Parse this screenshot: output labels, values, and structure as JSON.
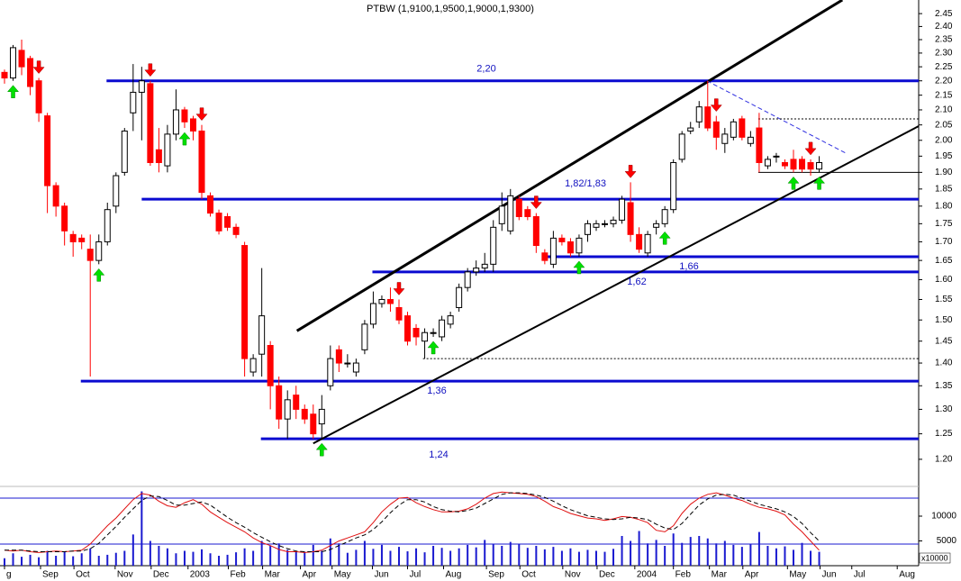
{
  "chart_data": [
    {
      "type": "candlestick",
      "title": "PTBW (1,9100,1,9500,1,9000,1,9300)",
      "open": [
        2.23,
        2.21,
        2.31,
        2.28,
        2.2,
        2.08,
        1.86,
        1.8,
        1.72,
        1.71,
        1.68,
        1.65,
        1.7,
        1.8,
        1.9,
        2.09,
        2.16,
        2.19,
        1.97,
        1.92,
        2.02,
        2.1,
        2.07,
        2.03,
        1.83,
        1.78,
        1.77,
        1.74,
        1.69,
        1.38,
        1.42,
        1.44,
        1.35,
        1.28,
        1.33,
        1.3,
        1.29,
        1.27,
        1.35,
        1.43,
        1.4,
        1.38,
        1.43,
        1.49,
        1.54,
        1.55,
        1.53,
        1.51,
        1.48,
        1.45,
        1.47,
        1.46,
        1.49,
        1.53,
        1.58,
        1.62,
        1.63,
        1.64,
        1.75,
        1.73,
        1.82,
        1.79,
        1.77,
        1.67,
        1.64,
        1.71,
        1.7,
        1.67,
        1.72,
        1.74,
        1.75,
        1.75,
        1.76,
        1.81,
        1.72,
        1.67,
        1.74,
        1.75,
        1.79,
        1.94,
        2.03,
        2.06,
        2.11,
        2.06,
        1.99,
        2.01,
        2.07,
        1.99,
        2.04,
        1.92,
        1.95,
        1.93,
        1.94,
        1.94,
        1.93,
        1.91
      ],
      "high": [
        2.24,
        2.33,
        2.35,
        2.29,
        2.21,
        2.09,
        1.87,
        1.81,
        1.73,
        1.72,
        1.72,
        1.72,
        1.81,
        1.9,
        2.04,
        2.26,
        2.25,
        2.2,
        2.04,
        2.05,
        2.17,
        2.11,
        2.08,
        2.05,
        1.84,
        1.79,
        1.78,
        1.75,
        1.7,
        1.42,
        1.63,
        1.45,
        1.37,
        1.34,
        1.35,
        1.31,
        1.31,
        1.33,
        1.44,
        1.44,
        1.42,
        1.41,
        1.5,
        1.57,
        1.56,
        1.58,
        1.55,
        1.52,
        1.49,
        1.48,
        1.48,
        1.51,
        1.52,
        1.59,
        1.63,
        1.65,
        1.67,
        1.76,
        1.84,
        1.85,
        1.83,
        1.8,
        1.78,
        1.68,
        1.73,
        1.72,
        1.71,
        1.72,
        1.76,
        1.76,
        1.76,
        1.77,
        1.83,
        1.87,
        1.74,
        1.73,
        1.76,
        1.8,
        1.94,
        2.03,
        2.06,
        2.13,
        2.2,
        2.08,
        2.04,
        2.07,
        2.08,
        2.03,
        2.09,
        1.95,
        1.96,
        1.94,
        1.97,
        1.95,
        1.94,
        1.95
      ],
      "low": [
        2.19,
        2.2,
        2.22,
        2.15,
        2.06,
        1.78,
        1.77,
        1.69,
        1.66,
        1.68,
        1.37,
        1.64,
        1.69,
        1.78,
        1.89,
        2.03,
        2.0,
        1.92,
        1.9,
        1.9,
        2.0,
        2.04,
        2.0,
        1.82,
        1.77,
        1.72,
        1.73,
        1.71,
        1.37,
        1.37,
        1.37,
        1.3,
        1.26,
        1.24,
        1.28,
        1.27,
        1.24,
        1.24,
        1.34,
        1.38,
        1.39,
        1.37,
        1.42,
        1.48,
        1.53,
        1.52,
        1.49,
        1.44,
        1.44,
        1.41,
        1.46,
        1.45,
        1.48,
        1.52,
        1.57,
        1.61,
        1.62,
        1.62,
        1.73,
        1.72,
        1.76,
        1.76,
        1.67,
        1.64,
        1.63,
        1.69,
        1.66,
        1.66,
        1.7,
        1.73,
        1.74,
        1.74,
        1.75,
        1.7,
        1.67,
        1.66,
        1.72,
        1.74,
        1.78,
        1.93,
        2.02,
        2.04,
        2.03,
        1.97,
        1.96,
        2.0,
        2.0,
        1.98,
        1.9,
        1.91,
        1.93,
        1.91,
        1.9,
        1.9,
        1.89,
        1.9
      ],
      "close": [
        2.21,
        2.32,
        2.25,
        2.18,
        2.09,
        1.86,
        1.8,
        1.73,
        1.7,
        1.7,
        1.65,
        1.7,
        1.79,
        1.89,
        2.03,
        2.16,
        2.2,
        1.93,
        1.93,
        2.02,
        2.1,
        2.06,
        2.03,
        1.84,
        1.78,
        1.73,
        1.74,
        1.72,
        1.41,
        1.41,
        1.51,
        1.35,
        1.28,
        1.32,
        1.3,
        1.28,
        1.25,
        1.3,
        1.41,
        1.4,
        1.4,
        1.4,
        1.49,
        1.54,
        1.55,
        1.54,
        1.5,
        1.45,
        1.46,
        1.47,
        1.47,
        1.5,
        1.51,
        1.58,
        1.62,
        1.63,
        1.64,
        1.74,
        1.8,
        1.83,
        1.77,
        1.77,
        1.69,
        1.65,
        1.71,
        1.7,
        1.67,
        1.71,
        1.75,
        1.75,
        1.75,
        1.76,
        1.82,
        1.72,
        1.68,
        1.72,
        1.75,
        1.79,
        1.93,
        2.02,
        2.04,
        2.11,
        2.04,
        2.01,
        2.02,
        2.06,
        2.01,
        2.01,
        1.93,
        1.94,
        1.95,
        1.92,
        1.91,
        1.91,
        1.91,
        1.93
      ],
      "up_color": "#ffffff",
      "down_color": "#ff0000",
      "log_scale": true,
      "xlim": [
        -0.525,
        106.6
      ],
      "ylim": [
        1.149,
        2.504
      ],
      "yticks": [
        {
          "value": 2.45,
          "label": "2.45"
        },
        {
          "value": 2.4,
          "label": "2.40"
        },
        {
          "value": 2.35,
          "label": "2.35"
        },
        {
          "value": 2.3,
          "label": "2.30"
        },
        {
          "value": 2.25,
          "label": "2.25"
        },
        {
          "value": 2.2,
          "label": "2.20"
        },
        {
          "value": 2.15,
          "label": "2.15"
        },
        {
          "value": 2.1,
          "label": "2.10"
        },
        {
          "value": 2.05,
          "label": "2.05"
        },
        {
          "value": 2.0,
          "label": "2.00"
        },
        {
          "value": 1.95,
          "label": "1.95"
        },
        {
          "value": 1.9,
          "label": "1.90"
        },
        {
          "value": 1.85,
          "label": "1.85"
        },
        {
          "value": 1.8,
          "label": "1.80"
        },
        {
          "value": 1.75,
          "label": "1.75"
        },
        {
          "value": 1.7,
          "label": "1.70"
        },
        {
          "value": 1.65,
          "label": "1.65"
        },
        {
          "value": 1.6,
          "label": "1.60"
        },
        {
          "value": 1.55,
          "label": "1.55"
        },
        {
          "value": 1.5,
          "label": "1.50"
        },
        {
          "value": 1.45,
          "label": "1.45"
        },
        {
          "value": 1.4,
          "label": "1.40"
        },
        {
          "value": 1.35,
          "label": "1.35"
        },
        {
          "value": 1.3,
          "label": "1.30"
        },
        {
          "value": 1.25,
          "label": "1.25"
        },
        {
          "value": 1.2,
          "label": "1.20"
        }
      ],
      "levels": [
        {
          "value": 2.2,
          "label": "2,20",
          "start": 11.9
        },
        {
          "value": 1.82,
          "label": "1,82/1,83",
          "start": 16.0
        },
        {
          "value": 1.66,
          "label": "1,66",
          "start": 63.0
        },
        {
          "value": 1.62,
          "label": "1,62",
          "start": 42.9
        },
        {
          "value": 1.36,
          "label": "1,36",
          "start": 8.9
        },
        {
          "value": 1.24,
          "label": "1,24",
          "start": 29.9
        }
      ],
      "level_color": "#0a0ad0",
      "trend_lines": [
        {
          "x": [
            34.1,
            97.7
          ],
          "y": [
            1.474,
            2.504
          ],
          "color": "#000000",
          "style": "solid",
          "width": 3
        },
        {
          "x": [
            36.0,
            106.6
          ],
          "y": [
            1.231,
            2.046
          ],
          "color": "#000000",
          "style": "solid",
          "width": 2
        },
        {
          "x": [
            81.9,
            98.2
          ],
          "y": [
            2.2,
            1.958
          ],
          "color": "#3030e0",
          "style": "dashed",
          "width": 1
        },
        {
          "x": [
            87.9,
            106.6
          ],
          "y": [
            2.07,
            2.07
          ],
          "color": "#000000",
          "style": "dotted",
          "width": 1
        },
        {
          "x": [
            48.8,
            106.6
          ],
          "y": [
            1.41,
            1.41
          ],
          "color": "#000000",
          "style": "dotted",
          "width": 1
        },
        {
          "x": [
            87.9,
            106.6
          ],
          "y": [
            1.9,
            1.9
          ],
          "color": "#000000",
          "style": "solid",
          "width": 1
        }
      ],
      "buy_signals": [
        1,
        11,
        21,
        37,
        50,
        67,
        77,
        92,
        95
      ],
      "sell_signals": [
        4,
        17,
        23,
        46,
        62,
        73,
        83,
        94
      ],
      "buy_color": "#00e000",
      "sell_color": "#ff0000"
    },
    {
      "type": "bar",
      "values": [
        1500,
        2500,
        1800,
        2200,
        1700,
        3000,
        2000,
        2800,
        1900,
        2500,
        3500,
        2000,
        2200,
        2600,
        3000,
        6300,
        15000,
        5000,
        4000,
        3500,
        2500,
        3000,
        2800,
        3300,
        2500,
        2000,
        2200,
        2700,
        3500,
        3000,
        5000,
        4000,
        4500,
        3200,
        3000,
        2800,
        4200,
        3000,
        5500,
        4500,
        2600,
        3200,
        5000,
        3400,
        4200,
        3000,
        3800,
        2900,
        3500,
        2700,
        4000,
        3600,
        3000,
        3500,
        4200,
        3700,
        5200,
        4400,
        4000,
        4800,
        4300,
        3600,
        4000,
        3300,
        3800,
        3000,
        3500,
        2800,
        3200,
        3000,
        2800,
        3400,
        6000,
        5000,
        7000,
        4500,
        5200,
        4000,
        6500,
        4600,
        5800,
        6000,
        5500,
        4500,
        5000,
        4200,
        3800,
        4300,
        6800,
        4000,
        3500,
        3900,
        3200,
        4600,
        3000,
        2800
      ],
      "color": "#1a1ad0",
      "ylim": [
        0,
        16000
      ],
      "yticks": [
        5000,
        10000
      ],
      "y_unit_label": "x10000",
      "y2lim": [
        -8.2,
        95.3
      ],
      "y2_reference_lines": [
        80,
        20
      ],
      "reference_color": "#1a1ad0",
      "series": [
        {
          "color": "#e01010",
          "style": "solid",
          "axis": "y2",
          "values": [
            12,
            11,
            12,
            10,
            9,
            10,
            11,
            10,
            11,
            12,
            20,
            32,
            44,
            54,
            66,
            78,
            86,
            84,
            76,
            70,
            68,
            74,
            78,
            72,
            62,
            55,
            48,
            42,
            36,
            28,
            22,
            18,
            13,
            10,
            10,
            9,
            10,
            12,
            18,
            24,
            28,
            32,
            36,
            48,
            62,
            72,
            80,
            81,
            74,
            69,
            65,
            62,
            62,
            63,
            66,
            72,
            80,
            86,
            88,
            87,
            86,
            85,
            82,
            76,
            69,
            65,
            60,
            57,
            54,
            53,
            51,
            53,
            56,
            55,
            52,
            48,
            38,
            36,
            44,
            60,
            72,
            80,
            85,
            87,
            84,
            80,
            77,
            72,
            68,
            66,
            63,
            58,
            46,
            36,
            24,
            12
          ]
        },
        {
          "color": "#000000",
          "style": "dashed",
          "axis": "y2",
          "values": [
            12,
            12,
            12,
            11,
            10,
            10,
            10,
            10,
            11,
            11,
            14,
            21,
            32,
            43,
            55,
            66,
            77,
            83,
            82,
            77,
            71,
            71,
            73,
            75,
            71,
            63,
            55,
            48,
            42,
            35,
            29,
            23,
            18,
            14,
            11,
            10,
            10,
            10,
            13,
            18,
            23,
            28,
            32,
            39,
            49,
            61,
            71,
            78,
            78,
            75,
            69,
            65,
            63,
            62,
            64,
            67,
            73,
            79,
            85,
            87,
            87,
            86,
            84,
            81,
            76,
            70,
            65,
            61,
            57,
            55,
            53,
            52,
            53,
            55,
            54,
            52,
            46,
            41,
            39,
            47,
            59,
            71,
            79,
            84,
            85,
            84,
            80,
            76,
            72,
            69,
            66,
            62,
            56,
            47,
            35,
            24
          ]
        }
      ],
      "xlim": [
        -0.525,
        106.6
      ],
      "xticks": [
        {
          "value": 0,
          "label": "g"
        },
        {
          "value": 4.2,
          "label": "Sep"
        },
        {
          "value": 8.1,
          "label": "Oct"
        },
        {
          "value": 12.9,
          "label": "Nov"
        },
        {
          "value": 17.1,
          "label": "Dec"
        },
        {
          "value": 21.4,
          "label": "2003"
        },
        {
          "value": 26.1,
          "label": "Feb"
        },
        {
          "value": 30.1,
          "label": "Mar"
        },
        {
          "value": 34.5,
          "label": "Apr"
        },
        {
          "value": 38.2,
          "label": "May"
        },
        {
          "value": 42.9,
          "label": "Jun"
        },
        {
          "value": 47.0,
          "label": "Jul"
        },
        {
          "value": 51.2,
          "label": "Aug"
        },
        {
          "value": 56.2,
          "label": "Sep"
        },
        {
          "value": 60.1,
          "label": "Oct"
        },
        {
          "value": 65.1,
          "label": "Nov"
        },
        {
          "value": 69.1,
          "label": "Dec"
        },
        {
          "value": 73.5,
          "label": "2004"
        },
        {
          "value": 78.0,
          "label": "Feb"
        },
        {
          "value": 82.2,
          "label": "Mar"
        },
        {
          "value": 86.1,
          "label": "Apr"
        },
        {
          "value": 91.3,
          "label": "May"
        },
        {
          "value": 95.1,
          "label": "Jun"
        },
        {
          "value": 98.8,
          "label": "Jul"
        },
        {
          "value": 104.1,
          "label": "Aug"
        }
      ]
    }
  ]
}
